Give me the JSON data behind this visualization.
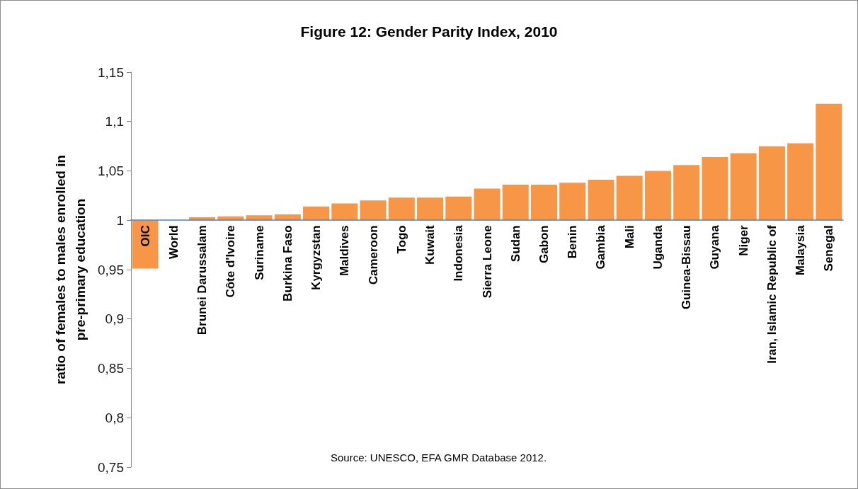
{
  "chart_data": {
    "type": "bar",
    "title": "Figure 12: Gender Parity Index, 2010",
    "ylabel": "ratio of females to males enrolled in pre-primary education",
    "annotations": [
      "Source: UNESCO, EFA GMR Database 2012."
    ],
    "categories": [
      "OIC",
      "World",
      "Brunei Darussalam",
      "Côte d'Ivoire",
      "Suriname",
      "Burkina Faso",
      "Kyrgyzstan",
      "Maldives",
      "Cameroon",
      "Togo",
      "Kuwait",
      "Indonesia",
      "Sierra Leone",
      "Sudan",
      "Gabon",
      "Benin",
      "Gambia",
      "Mali",
      "Uganda",
      "Guinea-Bissau",
      "Guyana",
      "Niger",
      "Iran, Islamic Republic of",
      "Malaysia",
      "Senegal"
    ],
    "base": [
      1,
      null,
      1,
      1,
      1,
      1,
      1,
      1,
      1,
      1,
      1,
      1,
      1,
      1,
      1,
      1,
      1,
      1,
      1,
      1,
      1,
      1,
      1,
      1,
      1
    ],
    "values": [
      -0.049,
      null,
      0.003,
      0.004,
      0.005,
      0.006,
      0.014,
      0.017,
      0.02,
      0.023,
      0.023,
      0.024,
      0.032,
      0.036,
      0.036,
      0.038,
      0.041,
      0.045,
      0.05,
      0.056,
      0.064,
      0.068,
      0.075,
      0.078,
      0.118
    ],
    "color": "#f79646",
    "ylim": [
      0.75,
      1.15
    ],
    "yticks": [
      {
        "value": 0.75,
        "label": "0,75"
      },
      {
        "value": 0.8,
        "label": "0,8"
      },
      {
        "value": 0.85,
        "label": "0,85"
      },
      {
        "value": 0.9,
        "label": "0,9"
      },
      {
        "value": 0.95,
        "label": "0,95"
      },
      1,
      {
        "value": 1.05,
        "label": "1,05"
      },
      {
        "value": 1.1,
        "label": "1,1"
      },
      {
        "value": 1.15,
        "label": "1,15"
      }
    ]
  }
}
